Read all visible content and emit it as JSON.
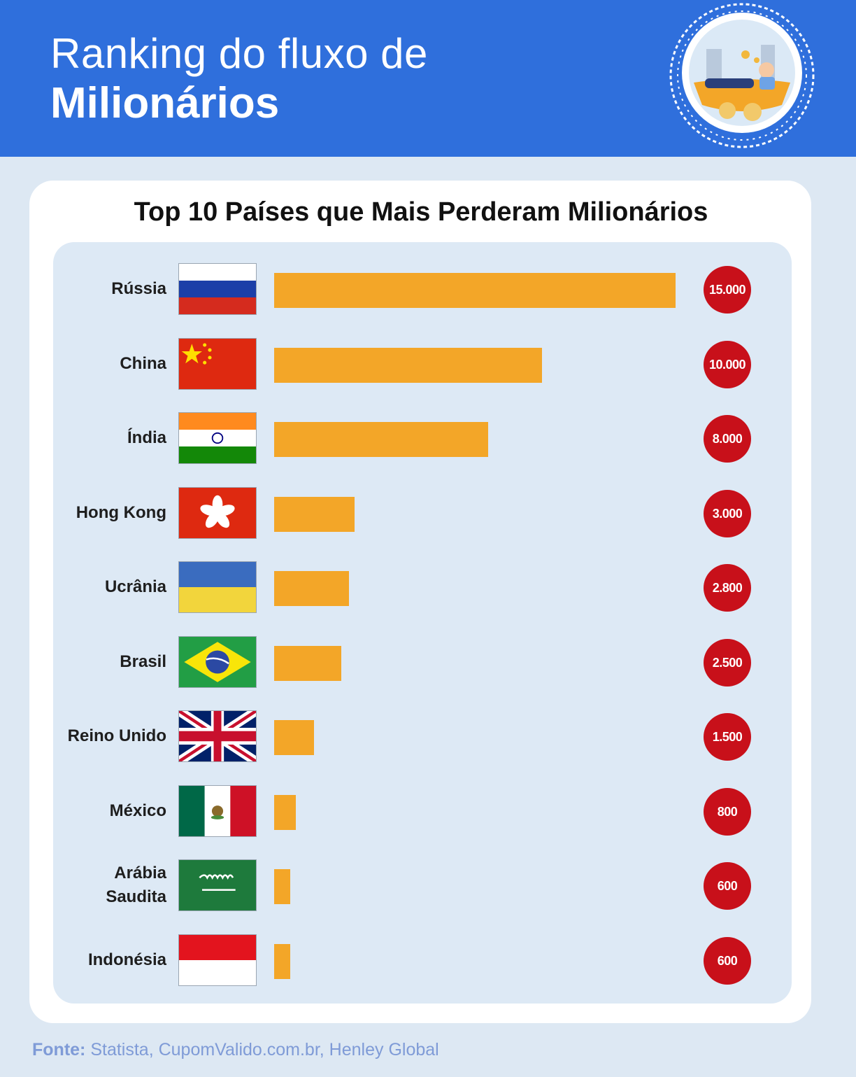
{
  "header": {
    "line1": "Ranking do fluxo de",
    "line2": "Milionários"
  },
  "chart_data": {
    "type": "bar",
    "orientation": "horizontal",
    "title": "Top 10 Países que Mais Perderam Milionários",
    "categories": [
      "Rússia",
      "China",
      "Índia",
      "Hong Kong",
      "Ucrânia",
      "Brasil",
      "Reino Unido",
      "México",
      "Arábia Saudita",
      "Indonésia"
    ],
    "values": [
      15000,
      10000,
      8000,
      3000,
      2800,
      2500,
      1500,
      800,
      600,
      600
    ],
    "value_labels": [
      "15.000",
      "10.000",
      "8.000",
      "3.000",
      "2.800",
      "2.500",
      "1.500",
      "800",
      "600",
      "600"
    ],
    "flags": [
      "russia-flag",
      "china-flag",
      "india-flag",
      "hong-kong-flag",
      "ukraine-flag",
      "brazil-flag",
      "united-kingdom-flag",
      "mexico-flag",
      "saudi-arabia-flag",
      "indonesia-flag"
    ],
    "bar_color": "#f3a628",
    "badge_color": "#c8101a",
    "xlim": [
      0,
      15000
    ],
    "grid": false,
    "legend": "none"
  },
  "source": {
    "label": "Fonte:",
    "text": " Statista, CupomValido.com.br, Henley Global"
  },
  "colors": {
    "header_bg": "#2f6fdc",
    "page_bg": "#dde8f3",
    "panel_bg": "#dde9f5"
  }
}
